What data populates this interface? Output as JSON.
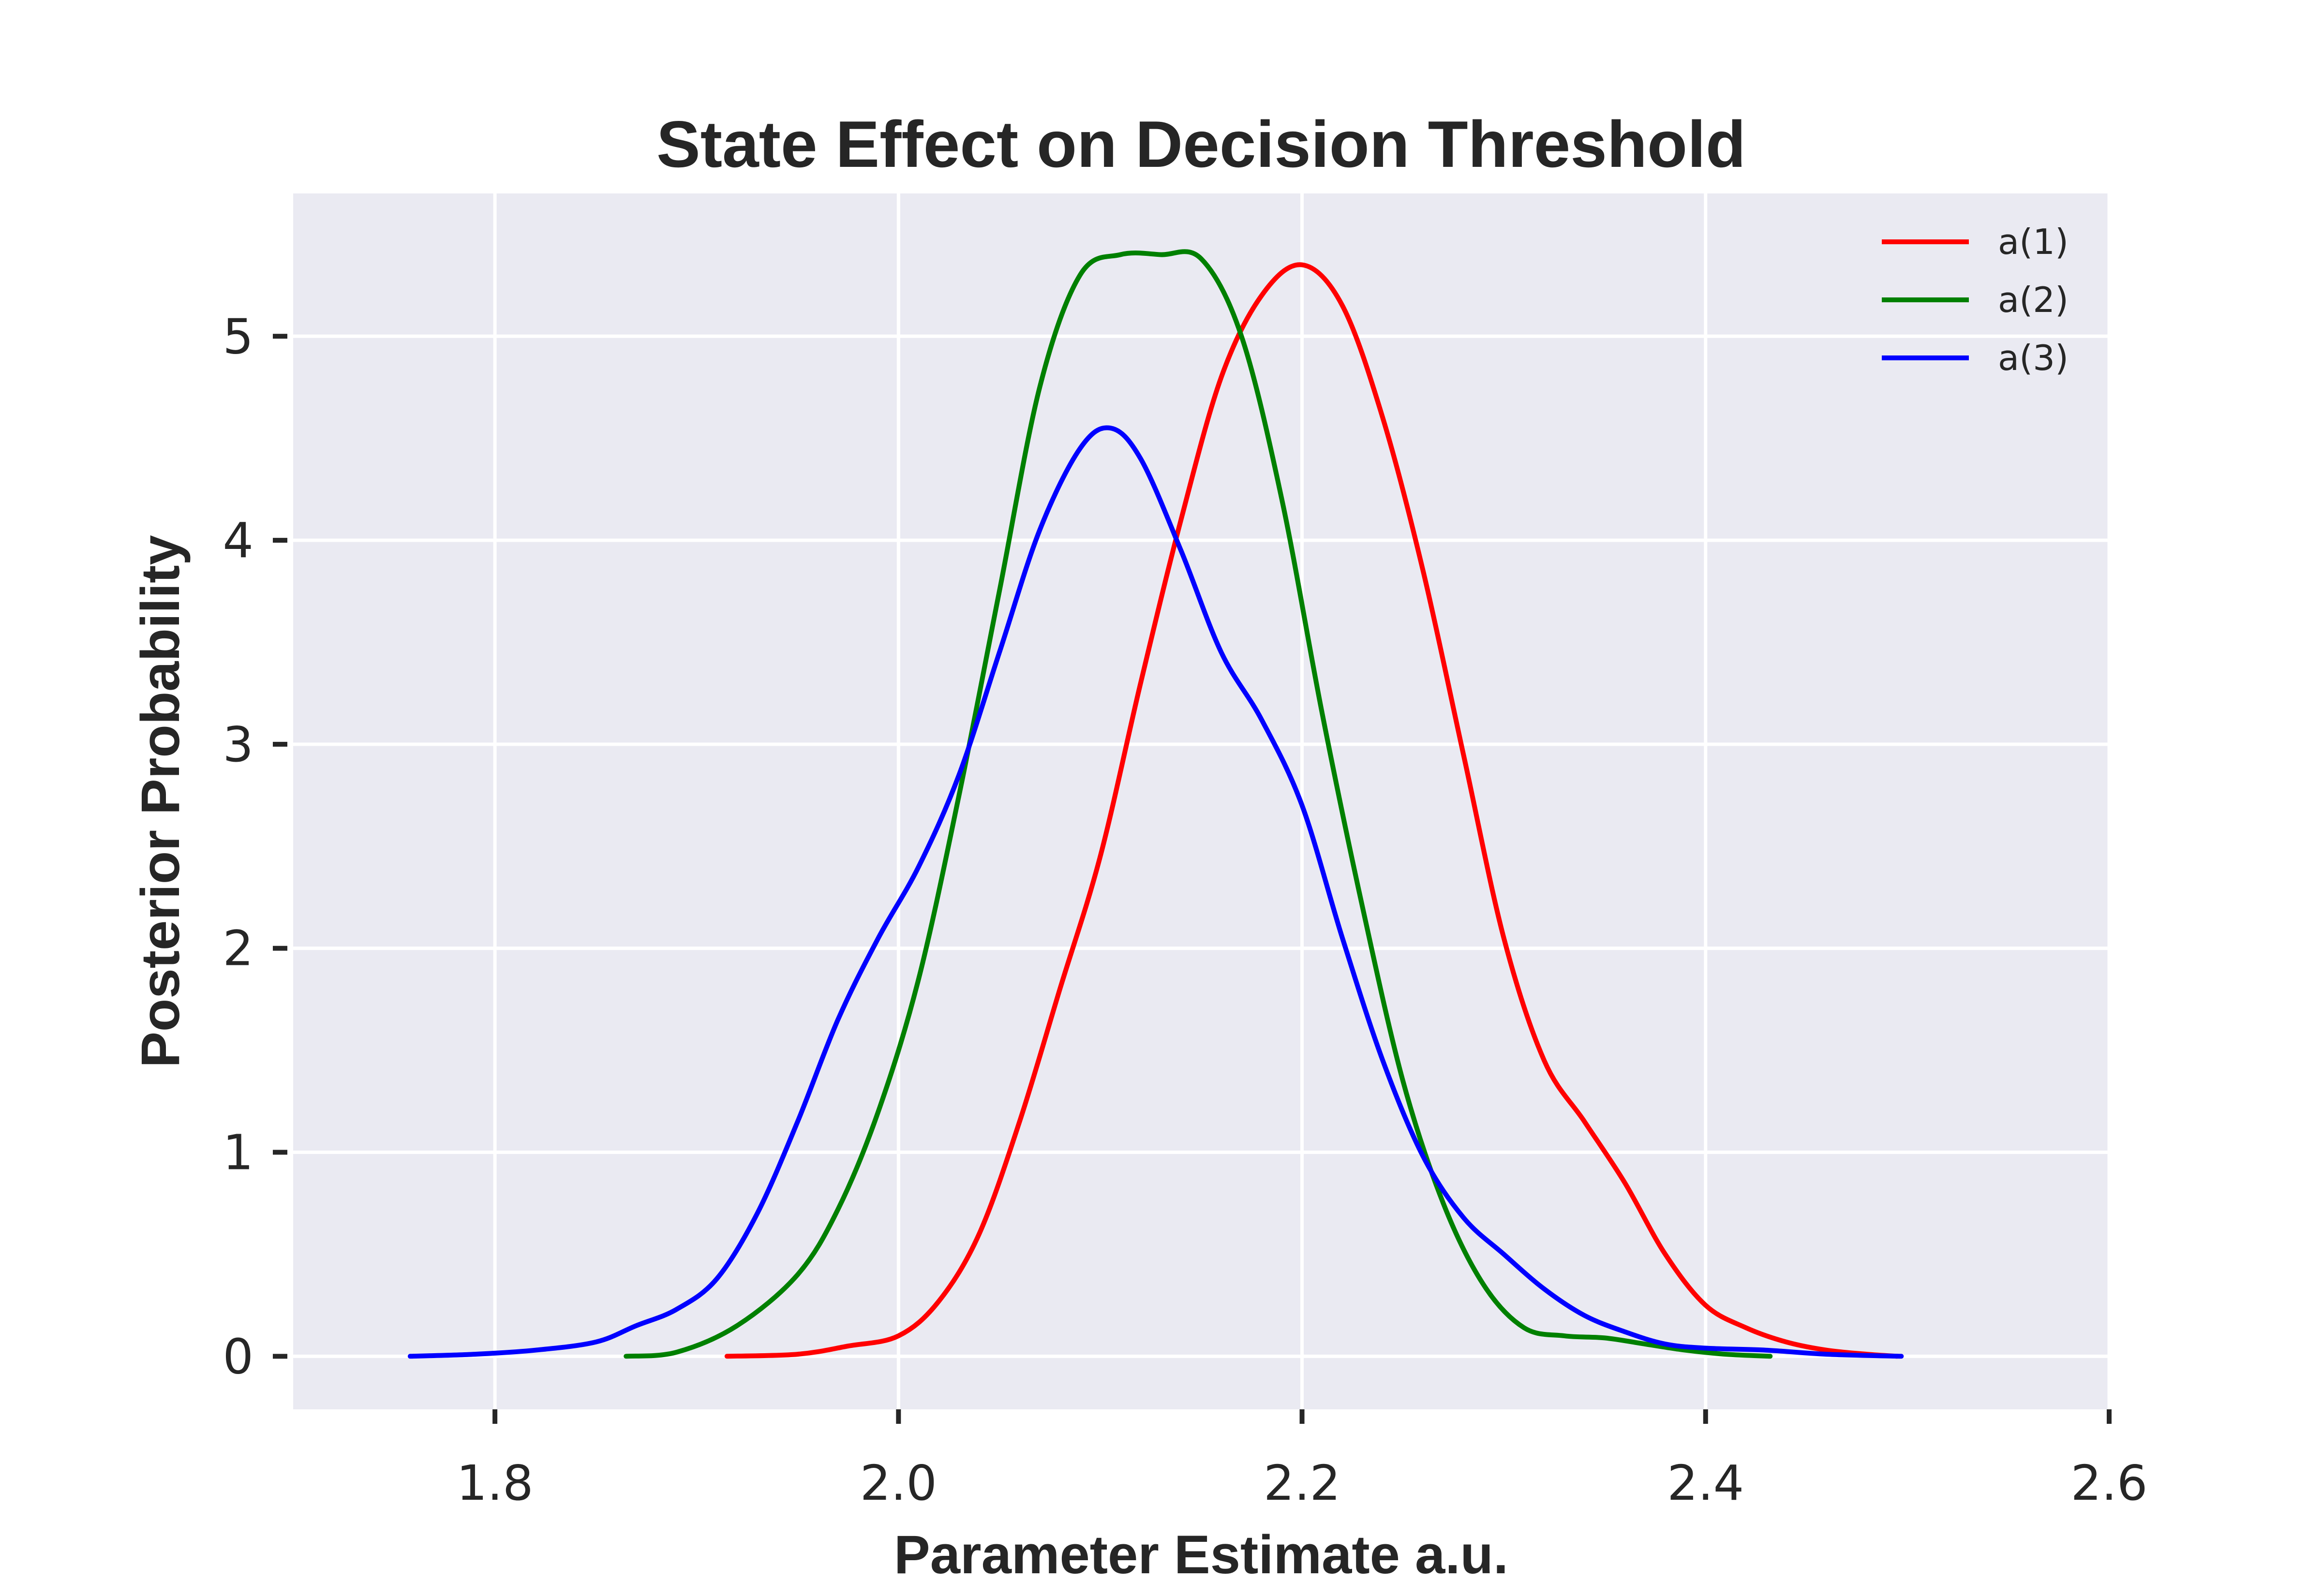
{
  "chart_data": {
    "type": "line",
    "title": "State Effect on Decision Threshold",
    "xlabel": "Parameter Estimate a.u.",
    "ylabel": "Posterior Probability",
    "xlim": [
      1.7,
      2.6
    ],
    "ylim": [
      -0.26,
      5.7
    ],
    "xticks": [
      1.8,
      2.0,
      2.2,
      2.4,
      2.6
    ],
    "xtick_labels": [
      "1.8",
      "2.0",
      "2.2",
      "2.4",
      "2.6"
    ],
    "yticks": [
      0,
      1,
      2,
      3,
      4,
      5
    ],
    "ytick_labels": [
      "0",
      "1",
      "2",
      "3",
      "4",
      "5"
    ],
    "grid": true,
    "background": "#eaeaf2",
    "legend": {
      "position": "top-right"
    },
    "series": [
      {
        "name": "a(1)",
        "color": "#ff0000",
        "points": [
          [
            1.915,
            0.0
          ],
          [
            1.95,
            0.01
          ],
          [
            1.975,
            0.05
          ],
          [
            2.0,
            0.1
          ],
          [
            2.02,
            0.27
          ],
          [
            2.04,
            0.6
          ],
          [
            2.06,
            1.15
          ],
          [
            2.08,
            1.8
          ],
          [
            2.1,
            2.45
          ],
          [
            2.12,
            3.3
          ],
          [
            2.14,
            4.1
          ],
          [
            2.16,
            4.8
          ],
          [
            2.18,
            5.2
          ],
          [
            2.2,
            5.35
          ],
          [
            2.22,
            5.15
          ],
          [
            2.24,
            4.6
          ],
          [
            2.26,
            3.85
          ],
          [
            2.28,
            2.95
          ],
          [
            2.3,
            2.05
          ],
          [
            2.32,
            1.45
          ],
          [
            2.34,
            1.15
          ],
          [
            2.36,
            0.85
          ],
          [
            2.38,
            0.5
          ],
          [
            2.4,
            0.25
          ],
          [
            2.42,
            0.14
          ],
          [
            2.44,
            0.07
          ],
          [
            2.46,
            0.03
          ],
          [
            2.48,
            0.01
          ],
          [
            2.495,
            0.0
          ]
        ]
      },
      {
        "name": "a(2)",
        "color": "#008000",
        "points": [
          [
            1.865,
            0.0
          ],
          [
            1.89,
            0.02
          ],
          [
            1.92,
            0.15
          ],
          [
            1.95,
            0.4
          ],
          [
            1.97,
            0.72
          ],
          [
            1.99,
            1.2
          ],
          [
            2.01,
            1.85
          ],
          [
            2.03,
            2.75
          ],
          [
            2.05,
            3.75
          ],
          [
            2.07,
            4.75
          ],
          [
            2.09,
            5.3
          ],
          [
            2.11,
            5.4
          ],
          [
            2.13,
            5.4
          ],
          [
            2.15,
            5.38
          ],
          [
            2.17,
            5.0
          ],
          [
            2.19,
            4.2
          ],
          [
            2.21,
            3.15
          ],
          [
            2.23,
            2.2
          ],
          [
            2.25,
            1.35
          ],
          [
            2.27,
            0.75
          ],
          [
            2.29,
            0.35
          ],
          [
            2.31,
            0.14
          ],
          [
            2.33,
            0.1
          ],
          [
            2.35,
            0.09
          ],
          [
            2.37,
            0.06
          ],
          [
            2.39,
            0.03
          ],
          [
            2.41,
            0.01
          ],
          [
            2.432,
            0.0
          ]
        ]
      },
      {
        "name": "a(3)",
        "color": "#0000ff",
        "points": [
          [
            1.758,
            0.0
          ],
          [
            1.79,
            0.01
          ],
          [
            1.82,
            0.03
          ],
          [
            1.85,
            0.07
          ],
          [
            1.87,
            0.15
          ],
          [
            1.89,
            0.23
          ],
          [
            1.91,
            0.38
          ],
          [
            1.93,
            0.7
          ],
          [
            1.95,
            1.15
          ],
          [
            1.97,
            1.65
          ],
          [
            1.99,
            2.05
          ],
          [
            2.01,
            2.4
          ],
          [
            2.03,
            2.85
          ],
          [
            2.05,
            3.45
          ],
          [
            2.07,
            4.05
          ],
          [
            2.09,
            4.45
          ],
          [
            2.105,
            4.55
          ],
          [
            2.12,
            4.4
          ],
          [
            2.14,
            3.95
          ],
          [
            2.16,
            3.45
          ],
          [
            2.18,
            3.12
          ],
          [
            2.2,
            2.7
          ],
          [
            2.22,
            2.05
          ],
          [
            2.24,
            1.45
          ],
          [
            2.26,
            0.98
          ],
          [
            2.28,
            0.68
          ],
          [
            2.3,
            0.5
          ],
          [
            2.32,
            0.33
          ],
          [
            2.34,
            0.2
          ],
          [
            2.36,
            0.12
          ],
          [
            2.38,
            0.06
          ],
          [
            2.4,
            0.04
          ],
          [
            2.43,
            0.03
          ],
          [
            2.46,
            0.01
          ],
          [
            2.497,
            0.0
          ]
        ]
      }
    ]
  }
}
